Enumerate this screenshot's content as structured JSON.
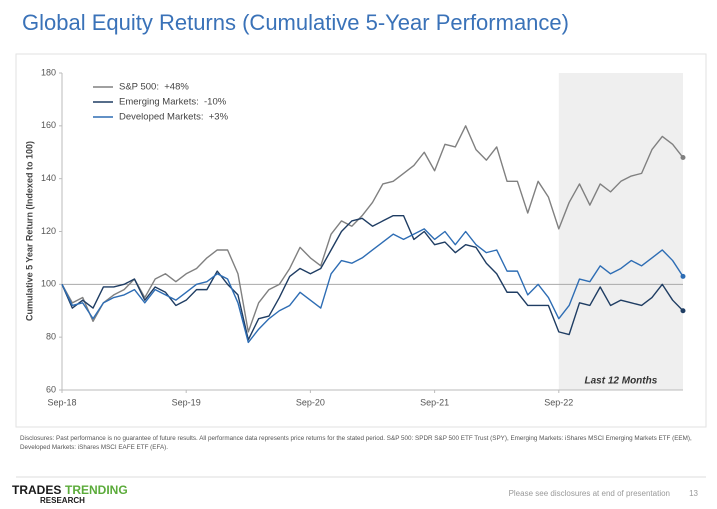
{
  "chart_data": {
    "type": "line",
    "title": "Global Equity Returns (Cumulative 5-Year Performance)",
    "y_label": "Cumulative 5 Year Return (Indexed to 100)",
    "categories": [
      "Sep-18",
      null,
      null,
      null,
      null,
      null,
      null,
      null,
      null,
      null,
      null,
      null,
      "Sep-19",
      null,
      null,
      null,
      null,
      null,
      null,
      null,
      null,
      null,
      null,
      null,
      "Sep-20",
      null,
      null,
      null,
      null,
      null,
      null,
      null,
      null,
      null,
      null,
      null,
      "Sep-21",
      null,
      null,
      null,
      null,
      null,
      null,
      null,
      null,
      null,
      null,
      null,
      "Sep-22",
      null,
      null,
      null,
      null,
      null,
      null,
      null,
      null,
      null,
      null,
      null,
      null
    ],
    "series": [
      {
        "name": "S&P 500:  +48%",
        "color": "#808080",
        "values": [
          100,
          93,
          95,
          86,
          93,
          96,
          98,
          102,
          95,
          102,
          104,
          101,
          104,
          106,
          110,
          113,
          113,
          104,
          82,
          93,
          98,
          100,
          106,
          114,
          110,
          107,
          119,
          124,
          122,
          126,
          131,
          138,
          139,
          142,
          145,
          150,
          143,
          153,
          152,
          160,
          151,
          147,
          152,
          139,
          139,
          127,
          139,
          133,
          121,
          131,
          138,
          130,
          138,
          135,
          139,
          141,
          142,
          151,
          156,
          153,
          148
        ]
      },
      {
        "name": "Emerging Markets:  -10%",
        "color": "#1f3d63",
        "values": [
          100,
          91,
          94,
          91,
          99,
          99,
          100,
          102,
          94,
          99,
          97,
          92,
          94,
          98,
          98,
          105,
          100,
          96,
          79,
          87,
          88,
          95,
          103,
          106,
          104,
          106,
          113,
          120,
          124,
          125,
          122,
          124,
          126,
          126,
          117,
          120,
          115,
          116,
          112,
          115,
          114,
          108,
          104,
          97,
          97,
          92,
          92,
          92,
          82,
          81,
          93,
          92,
          99,
          92,
          94,
          93,
          92,
          95,
          100,
          94,
          90
        ]
      },
      {
        "name": "Developed Markets:  +3%",
        "color": "#2e6db4",
        "values": [
          100,
          92,
          93,
          87,
          93,
          95,
          96,
          98,
          93,
          98,
          96,
          94,
          97,
          100,
          101,
          104,
          102,
          93,
          78,
          83,
          87,
          90,
          92,
          97,
          94,
          91,
          104,
          109,
          108,
          110,
          113,
          116,
          119,
          117,
          119,
          121,
          117,
          120,
          115,
          120,
          115,
          112,
          113,
          105,
          105,
          96,
          100,
          95,
          87,
          92,
          102,
          101,
          107,
          104,
          106,
          109,
          107,
          110,
          113,
          109,
          103
        ]
      }
    ],
    "ylim": [
      60,
      180
    ],
    "yticks": [
      60,
      80,
      100,
      120,
      140,
      160,
      180
    ],
    "grid": false,
    "reference_line": 100,
    "highlight": {
      "label": "Last 12 Months",
      "from": "Sep-22"
    },
    "legend": "upper left"
  },
  "page": {
    "disclosures": "Disclosures: Past performance is no guarantee of future results. All performance data represents price returns for the stated period. S&P 500: SPDR S&P 500 ETF Trust (SPY), Emerging Markets: iShares MSCI Emerging Markets ETF (EEM),  Developed Markets: iShares MSCI EAFE ETF (EFA).",
    "logo_a": "TRADES",
    "logo_b": "TRENDING",
    "logo_c": "RESEARCH",
    "footer": "Please see disclosures at end of presentation",
    "page_number": "13"
  }
}
